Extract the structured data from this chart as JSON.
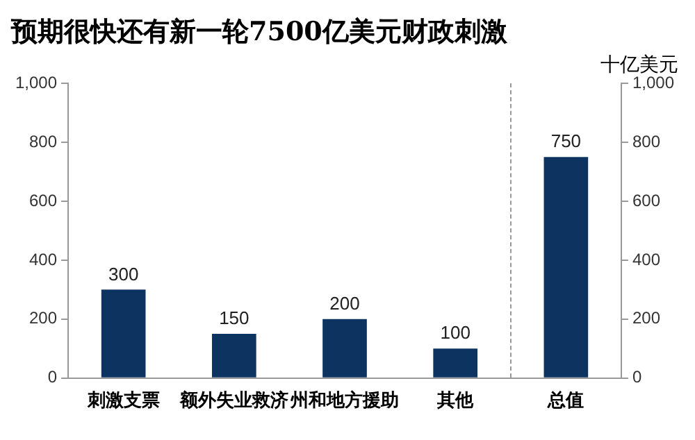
{
  "chart_data": {
    "type": "bar",
    "title": "预期很快还有新一轮7500亿美元财政刺激",
    "y2label": "十亿美元",
    "categories": [
      "刺激支票",
      "额外失业救济",
      "州和地方援助",
      "其他",
      "总值"
    ],
    "values": [
      300,
      150,
      200,
      100,
      750
    ],
    "color": "#0d3461",
    "ylim": [
      0,
      1000
    ],
    "yticks": [
      0,
      200,
      400,
      600,
      800,
      {
        "value": 1000,
        "label": "1,000"
      }
    ],
    "y2lim": [
      0,
      1000
    ],
    "y2ticks": [
      0,
      200,
      400,
      600,
      800,
      {
        "value": 1000,
        "label": "1,000"
      }
    ],
    "grid": false,
    "legend": false,
    "data_labels": true
  }
}
